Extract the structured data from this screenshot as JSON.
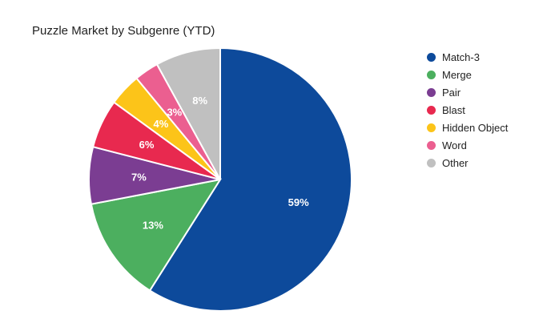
{
  "chart_data": {
    "type": "pie",
    "title": "Puzzle Market by Subgenre (YTD)",
    "legend_position": "right",
    "categories": [
      "Match-3",
      "Merge",
      "Pair",
      "Blast",
      "Hidden Object",
      "Word",
      "Other"
    ],
    "values": [
      59,
      13,
      7,
      6,
      4,
      3,
      8
    ],
    "labels": [
      "59%",
      "13%",
      "7%",
      "6%",
      "4%",
      "3%",
      "8%"
    ],
    "colors": [
      "#0d4a9b",
      "#4caf5f",
      "#7b3d92",
      "#e8294f",
      "#fcc419",
      "#eb5f90",
      "#c0c0c0"
    ]
  }
}
